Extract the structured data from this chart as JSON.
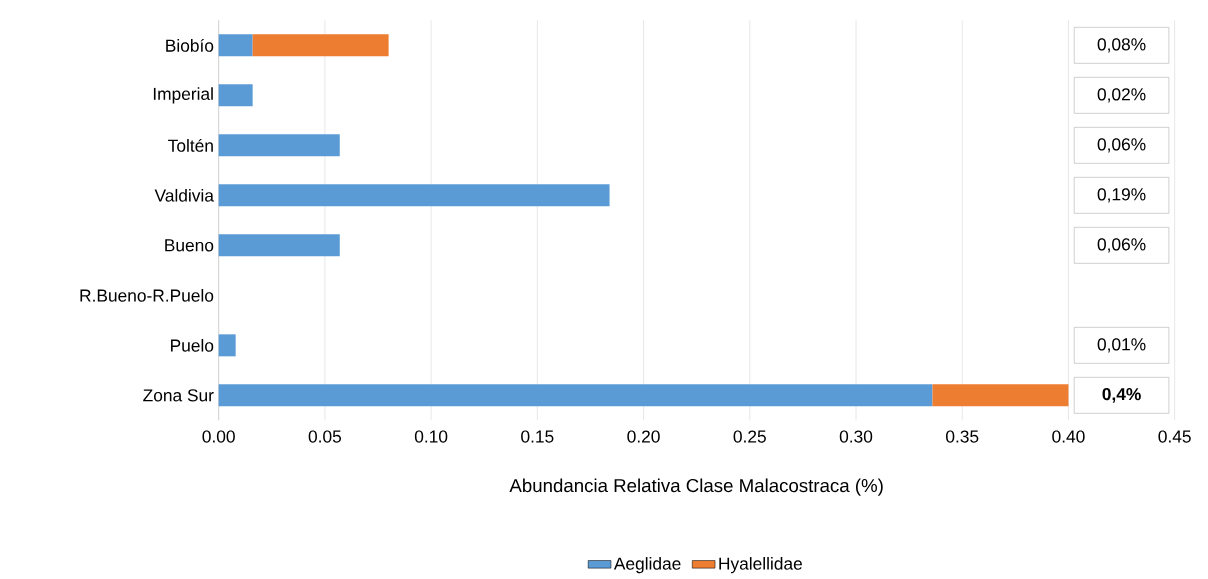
{
  "chart_data": {
    "type": "bar",
    "orientation": "horizontal",
    "stacked": true,
    "categories": [
      "Biobío",
      "Imperial",
      "Toltén",
      "Valdivia",
      "Bueno",
      "R.Bueno-R.Puelo",
      "Puelo",
      "Zona Sur"
    ],
    "series": [
      {
        "name": "Aeglidae",
        "color": "#5b9bd5",
        "values": [
          0.016,
          0.016,
          0.057,
          0.184,
          0.057,
          null,
          0.008,
          0.336
        ]
      },
      {
        "name": "Hyalellidae",
        "color": "#ed7d31",
        "values": [
          0.064,
          null,
          null,
          null,
          null,
          null,
          null,
          0.064
        ]
      }
    ],
    "annotations": [
      "0,08%",
      "0,02%",
      "0,06%",
      "0,19%",
      "0,06%",
      "0,01%",
      "**0,4%**"
    ],
    "xlabel": "Abundancia Relativa Clase Malacostraca (%)",
    "xlim": [
      0,
      0.45
    ],
    "xticks": [
      {
        "value": 0,
        "label": "0.00"
      },
      {
        "value": 0.05,
        "label": "0.05"
      },
      {
        "value": 0.1,
        "label": "0.10"
      },
      {
        "value": 0.15,
        "label": "0.15"
      },
      {
        "value": 0.2,
        "label": "0.20"
      },
      {
        "value": 0.25,
        "label": "0.25"
      },
      {
        "value": 0.3,
        "label": "0.30"
      },
      {
        "value": 0.35,
        "label": "0.35"
      },
      {
        "value": 0.4,
        "label": "0.40"
      },
      {
        "value": 0.45,
        "label": "0.45"
      }
    ],
    "grid": "x",
    "legend": "bottom"
  }
}
